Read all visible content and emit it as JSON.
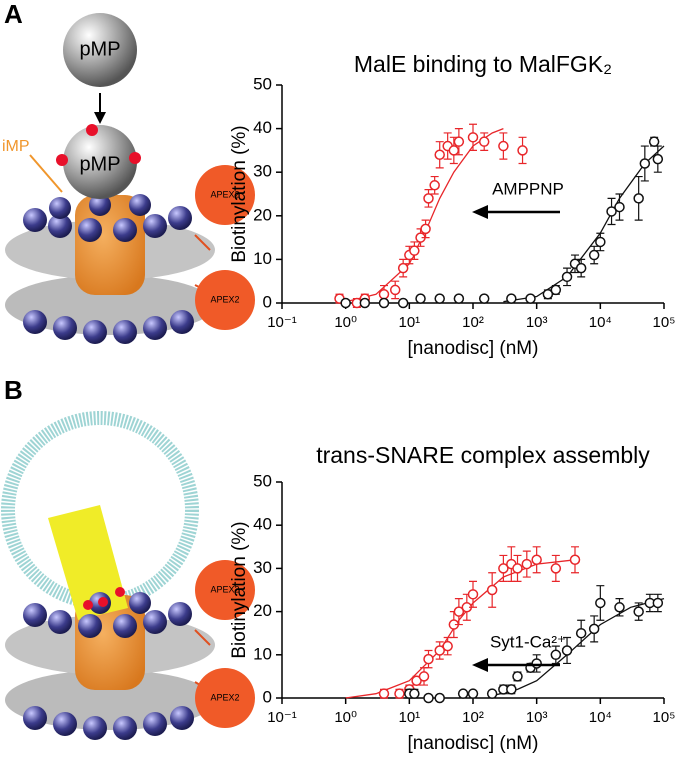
{
  "panels": [
    "A",
    "B"
  ],
  "illustration_labels": {
    "top_particle": "pMP",
    "bound_particle": "pMP",
    "inner_label": "iMP",
    "apex_a1": "APEX2",
    "apex_a2": "APEX2",
    "apex_b1": "APEX2",
    "apex_b2": "APEX2"
  },
  "chart_data": [
    {
      "type": "scatter",
      "title": "MalE binding to MalFGK₂",
      "x_label": "[nanodisc] (nM)",
      "y_label": "Biotinylation (%)",
      "log_x": true,
      "xlim": [
        0.1,
        100000
      ],
      "xticks": [
        {
          "value": 0.1,
          "label": "10⁻¹"
        },
        {
          "value": 1,
          "label": "10⁰"
        },
        {
          "value": 10,
          "label": "10¹"
        },
        {
          "value": 100,
          "label": "10²"
        },
        {
          "value": 1000,
          "label": "10³"
        },
        {
          "value": 10000,
          "label": "10⁴"
        },
        {
          "value": 100000,
          "label": "10⁵"
        }
      ],
      "ylim": [
        0,
        50
      ],
      "yticks": [
        0,
        10,
        20,
        30,
        40,
        50
      ],
      "annotation": "AMPPNP",
      "series": [
        {
          "color": "#e8262a",
          "x": [
            0.8,
            1.5,
            2,
            4,
            6,
            8,
            10,
            12,
            15,
            18,
            20,
            25,
            30,
            40,
            50,
            60,
            100,
            150,
            300,
            600
          ],
          "values": [
            1,
            0,
            1,
            2,
            3,
            8,
            11,
            12,
            15,
            17,
            24,
            27,
            34,
            36,
            35,
            37,
            38,
            37,
            36,
            35
          ],
          "errors": [
            1,
            1,
            1,
            2,
            2,
            2,
            2,
            2,
            2,
            2,
            2,
            2,
            3,
            3,
            3,
            3,
            3,
            2,
            3,
            3
          ],
          "fit_x": [
            1,
            3,
            10,
            20,
            30,
            50,
            100,
            200,
            300
          ],
          "fit_values": [
            0.3,
            2,
            9,
            18,
            24,
            30,
            36,
            39,
            40
          ]
        },
        {
          "color": "#111111",
          "x": [
            1,
            2,
            4,
            8,
            15,
            30,
            60,
            150,
            400,
            800,
            1500,
            2000,
            3000,
            4000,
            5000,
            8000,
            10000,
            15000,
            20000,
            40000,
            50000,
            70000,
            80000
          ],
          "values": [
            0,
            0,
            0,
            0,
            1,
            1,
            1,
            1,
            1,
            1,
            2,
            3,
            6,
            9,
            8,
            11,
            14,
            21,
            22,
            24,
            32,
            37,
            33
          ],
          "errors": [
            0.5,
            0.5,
            0.5,
            0.5,
            0.5,
            0.5,
            0.5,
            0.5,
            0.5,
            0.5,
            1,
            1,
            2,
            2,
            2,
            2,
            2,
            3,
            3,
            5,
            4,
            1,
            3
          ],
          "fit_x": [
            300,
            1000,
            3000,
            10000,
            20000,
            50000,
            100000
          ],
          "fit_values": [
            0.3,
            1.5,
            6,
            16,
            24,
            32,
            36
          ]
        }
      ]
    },
    {
      "type": "scatter",
      "title": "trans-SNARE complex assembly",
      "x_label": "[nanodisc] (nM)",
      "y_label": "Biotinylation (%)",
      "log_x": true,
      "xlim": [
        0.1,
        100000
      ],
      "xticks": [
        {
          "value": 0.1,
          "label": "10⁻¹"
        },
        {
          "value": 1,
          "label": "10⁰"
        },
        {
          "value": 10,
          "label": "10¹"
        },
        {
          "value": 100,
          "label": "10²"
        },
        {
          "value": 1000,
          "label": "10³"
        },
        {
          "value": 10000,
          "label": "10⁴"
        },
        {
          "value": 100000,
          "label": "10⁵"
        }
      ],
      "ylim": [
        0,
        50
      ],
      "yticks": [
        0,
        10,
        20,
        30,
        40,
        50
      ],
      "annotation": "Syt1-Ca²⁺",
      "series": [
        {
          "color": "#e8262a",
          "x": [
            4,
            7,
            10,
            13,
            17,
            20,
            30,
            40,
            50,
            60,
            80,
            100,
            200,
            300,
            400,
            500,
            700,
            1000,
            2000,
            4000
          ],
          "values": [
            1,
            1,
            2,
            4,
            5,
            9,
            11,
            12,
            17,
            20,
            21,
            24,
            25,
            30,
            31,
            30,
            31,
            32,
            30,
            32
          ],
          "errors": [
            1,
            1,
            1,
            1,
            2,
            2,
            2,
            2,
            3,
            3,
            3,
            3,
            4,
            3,
            4,
            3,
            3,
            3,
            3,
            3
          ],
          "fit_x": [
            1,
            3,
            10,
            30,
            60,
            100,
            300,
            1000,
            4000
          ],
          "fit_values": [
            0,
            1,
            4,
            11,
            18,
            22,
            28,
            31,
            32
          ]
        },
        {
          "color": "#111111",
          "x": [
            10,
            12,
            20,
            30,
            70,
            100,
            200,
            300,
            400,
            500,
            800,
            1000,
            2000,
            3000,
            5000,
            8000,
            10000,
            20000,
            40000,
            60000,
            80000
          ],
          "values": [
            1,
            1,
            0,
            0,
            1,
            1,
            1,
            2,
            2,
            5,
            7,
            8,
            10,
            11,
            15,
            16,
            22,
            21,
            20,
            22,
            22
          ],
          "errors": [
            1,
            1,
            0.5,
            0.5,
            0.5,
            0.5,
            0.5,
            1,
            1,
            1,
            1,
            2,
            2,
            3,
            3,
            3,
            4,
            2,
            2,
            2,
            2
          ],
          "fit_x": [
            200,
            500,
            1000,
            3000,
            10000,
            30000,
            100000
          ],
          "fit_values": [
            0.5,
            2,
            4,
            10,
            17,
            21,
            23
          ]
        }
      ]
    }
  ]
}
